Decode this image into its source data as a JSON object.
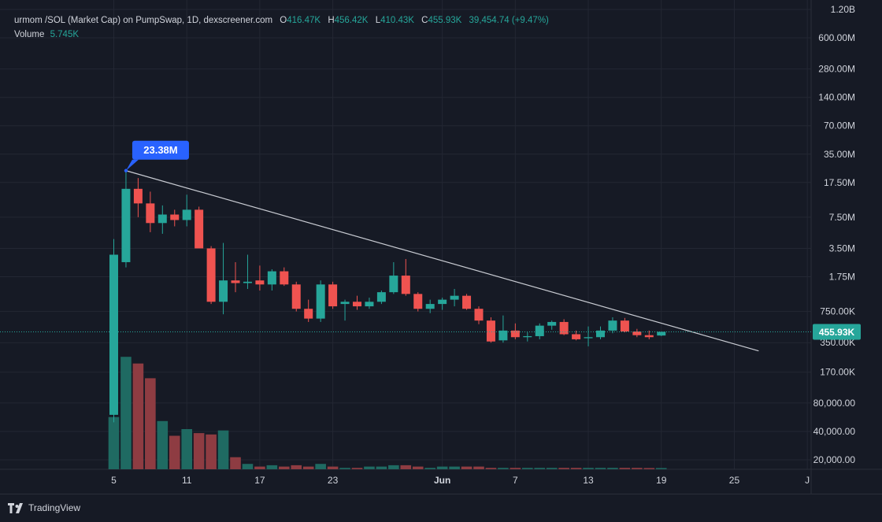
{
  "legend": {
    "symbol": "urmom /SOL (Market Cap) on PumpSwap, 1D, dexscreener.com",
    "open_label": "O",
    "open": "416.47K",
    "high_label": "H",
    "high": "456.42K",
    "low_label": "L",
    "low": "410.43K",
    "close_label": "C",
    "close": "455.93K",
    "change": "39,454.74 (+9.47%)",
    "volume_label": "Volume",
    "volume": "5.745K"
  },
  "brand": {
    "name": "TradingView",
    "icon": "tradingview-logo-icon"
  },
  "colors": {
    "background": "#161a25",
    "grid": "#232733",
    "up": "#26a69a",
    "down": "#ef5350",
    "up_volume": "#1f6a62",
    "down_volume": "#8e3c42",
    "trendline": "#c9ccd3",
    "annotation": "#2962ff",
    "price_label": "#26a69a"
  },
  "chart_data": {
    "type": "candlestick",
    "y_scale": "log",
    "y_ticks": [
      {
        "label": "1.20B",
        "value": 1200000000
      },
      {
        "label": "600.00M",
        "value": 600000000
      },
      {
        "label": "280.00M",
        "value": 280000000
      },
      {
        "label": "140.00M",
        "value": 140000000
      },
      {
        "label": "70.00M",
        "value": 70000000
      },
      {
        "label": "35.00M",
        "value": 35000000
      },
      {
        "label": "17.50M",
        "value": 17500000
      },
      {
        "label": "7.50M",
        "value": 7500000
      },
      {
        "label": "3.50M",
        "value": 3500000
      },
      {
        "label": "1.75M",
        "value": 1750000
      },
      {
        "label": "750.00K",
        "value": 750000
      },
      {
        "label": "350.00K",
        "value": 350000
      },
      {
        "label": "170.00K",
        "value": 170000
      },
      {
        "label": "80,000.00",
        "value": 80000
      },
      {
        "label": "40,000.00",
        "value": 40000
      },
      {
        "label": "20,000.00",
        "value": 20000
      }
    ],
    "x_ticks": [
      {
        "label": "5",
        "day": 5
      },
      {
        "label": "11",
        "day": 11
      },
      {
        "label": "17",
        "day": 17
      },
      {
        "label": "23",
        "day": 23
      },
      {
        "label": "Jun",
        "day": 32
      },
      {
        "label": "7",
        "day": 38
      },
      {
        "label": "13",
        "day": 44
      },
      {
        "label": "19",
        "day": 50
      },
      {
        "label": "25",
        "day": 56
      },
      {
        "label": "J",
        "day": 62
      }
    ],
    "current_price": {
      "label": "455.93K",
      "value": 455930
    },
    "annotation": {
      "label": "23.38M",
      "day": 6,
      "value": 23380000
    },
    "trendline": {
      "from": {
        "day": 6,
        "value": 23380000
      },
      "to": {
        "day": 58,
        "value": 286000
      }
    },
    "candles": [
      {
        "day": 5,
        "o": 60000,
        "h": 4400000,
        "l": 50000,
        "c": 3000000,
        "vol": 0.39
      },
      {
        "day": 6,
        "o": 2500000,
        "h": 23380000,
        "l": 2200000,
        "c": 15000000,
        "vol": 0.84
      },
      {
        "day": 7,
        "o": 15000000,
        "h": 19500000,
        "l": 7500000,
        "c": 10500000,
        "vol": 0.79
      },
      {
        "day": 8,
        "o": 10500000,
        "h": 14000000,
        "l": 5200000,
        "c": 6500000,
        "vol": 0.68
      },
      {
        "day": 9,
        "o": 6500000,
        "h": 10000000,
        "l": 5000000,
        "c": 8000000,
        "vol": 0.36
      },
      {
        "day": 10,
        "o": 8000000,
        "h": 9000000,
        "l": 6000000,
        "c": 7000000,
        "vol": 0.25
      },
      {
        "day": 11,
        "o": 7000000,
        "h": 13000000,
        "l": 6000000,
        "c": 9000000,
        "vol": 0.3
      },
      {
        "day": 12,
        "o": 9000000,
        "h": 9700000,
        "l": 3500000,
        "c": 3500000,
        "vol": 0.27
      },
      {
        "day": 13,
        "o": 3500000,
        "h": 3700000,
        "l": 900000,
        "c": 950000,
        "vol": 0.26
      },
      {
        "day": 14,
        "o": 950000,
        "h": 4000000,
        "l": 700000,
        "c": 1600000,
        "vol": 0.29
      },
      {
        "day": 15,
        "o": 1600000,
        "h": 2500000,
        "l": 1200000,
        "c": 1500000,
        "vol": 0.09
      },
      {
        "day": 16,
        "o": 1500000,
        "h": 3000000,
        "l": 1300000,
        "c": 1550000,
        "vol": 0.04
      },
      {
        "day": 17,
        "o": 1600000,
        "h": 2300000,
        "l": 1250000,
        "c": 1450000,
        "vol": 0.02
      },
      {
        "day": 18,
        "o": 1450000,
        "h": 2100000,
        "l": 1250000,
        "c": 2000000,
        "vol": 0.03
      },
      {
        "day": 19,
        "o": 2000000,
        "h": 2200000,
        "l": 1400000,
        "c": 1450000,
        "vol": 0.02
      },
      {
        "day": 20,
        "o": 1450000,
        "h": 1550000,
        "l": 750000,
        "c": 800000,
        "vol": 0.03
      },
      {
        "day": 21,
        "o": 800000,
        "h": 1000000,
        "l": 580000,
        "c": 630000,
        "vol": 0.02
      },
      {
        "day": 22,
        "o": 630000,
        "h": 1600000,
        "l": 580000,
        "c": 1450000,
        "vol": 0.04
      },
      {
        "day": 23,
        "o": 1450000,
        "h": 1550000,
        "l": 800000,
        "c": 850000,
        "vol": 0.02
      },
      {
        "day": 24,
        "o": 900000,
        "h": 1000000,
        "l": 600000,
        "c": 950000,
        "vol": 0.01
      },
      {
        "day": 25,
        "o": 950000,
        "h": 1100000,
        "l": 780000,
        "c": 850000,
        "vol": 0.01
      },
      {
        "day": 26,
        "o": 850000,
        "h": 1050000,
        "l": 800000,
        "c": 950000,
        "vol": 0.02
      },
      {
        "day": 27,
        "o": 950000,
        "h": 1250000,
        "l": 900000,
        "c": 1200000,
        "vol": 0.02
      },
      {
        "day": 28,
        "o": 1200000,
        "h": 2500000,
        "l": 1150000,
        "c": 1800000,
        "vol": 0.03
      },
      {
        "day": 29,
        "o": 1800000,
        "h": 2700000,
        "l": 1100000,
        "c": 1150000,
        "vol": 0.03
      },
      {
        "day": 30,
        "o": 1150000,
        "h": 1200000,
        "l": 750000,
        "c": 800000,
        "vol": 0.02
      },
      {
        "day": 31,
        "o": 800000,
        "h": 1000000,
        "l": 720000,
        "c": 900000,
        "vol": 0.01
      },
      {
        "day": 32,
        "o": 900000,
        "h": 1050000,
        "l": 780000,
        "c": 1000000,
        "vol": 0.02
      },
      {
        "day": 33,
        "o": 1000000,
        "h": 1300000,
        "l": 850000,
        "c": 1100000,
        "vol": 0.02
      },
      {
        "day": 34,
        "o": 1100000,
        "h": 1150000,
        "l": 780000,
        "c": 800000,
        "vol": 0.02
      },
      {
        "day": 35,
        "o": 800000,
        "h": 850000,
        "l": 550000,
        "c": 600000,
        "vol": 0.02
      },
      {
        "day": 36,
        "o": 600000,
        "h": 650000,
        "l": 350000,
        "c": 360000,
        "vol": 0.01
      },
      {
        "day": 37,
        "o": 370000,
        "h": 680000,
        "l": 350000,
        "c": 470000,
        "vol": 0.01
      },
      {
        "day": 38,
        "o": 470000,
        "h": 560000,
        "l": 380000,
        "c": 400000,
        "vol": 0.01
      },
      {
        "day": 39,
        "o": 400000,
        "h": 450000,
        "l": 360000,
        "c": 410000,
        "vol": 0.01
      },
      {
        "day": 40,
        "o": 410000,
        "h": 560000,
        "l": 380000,
        "c": 530000,
        "vol": 0.01
      },
      {
        "day": 41,
        "o": 530000,
        "h": 600000,
        "l": 480000,
        "c": 580000,
        "vol": 0.01
      },
      {
        "day": 42,
        "o": 580000,
        "h": 620000,
        "l": 420000,
        "c": 430000,
        "vol": 0.01
      },
      {
        "day": 43,
        "o": 430000,
        "h": 470000,
        "l": 370000,
        "c": 380000,
        "vol": 0.01
      },
      {
        "day": 44,
        "o": 390000,
        "h": 520000,
        "l": 320000,
        "c": 400000,
        "vol": 0.01
      },
      {
        "day": 45,
        "o": 400000,
        "h": 520000,
        "l": 380000,
        "c": 470000,
        "vol": 0.01
      },
      {
        "day": 46,
        "o": 470000,
        "h": 650000,
        "l": 440000,
        "c": 600000,
        "vol": 0.01
      },
      {
        "day": 47,
        "o": 600000,
        "h": 640000,
        "l": 450000,
        "c": 460000,
        "vol": 0.01
      },
      {
        "day": 48,
        "o": 460000,
        "h": 490000,
        "l": 400000,
        "c": 420000,
        "vol": 0.01
      },
      {
        "day": 49,
        "o": 420000,
        "h": 470000,
        "l": 380000,
        "c": 400000,
        "vol": 0.005
      },
      {
        "day": 50,
        "o": 416470,
        "h": 456420,
        "l": 410430,
        "c": 455930,
        "vol": 0.003
      }
    ]
  }
}
